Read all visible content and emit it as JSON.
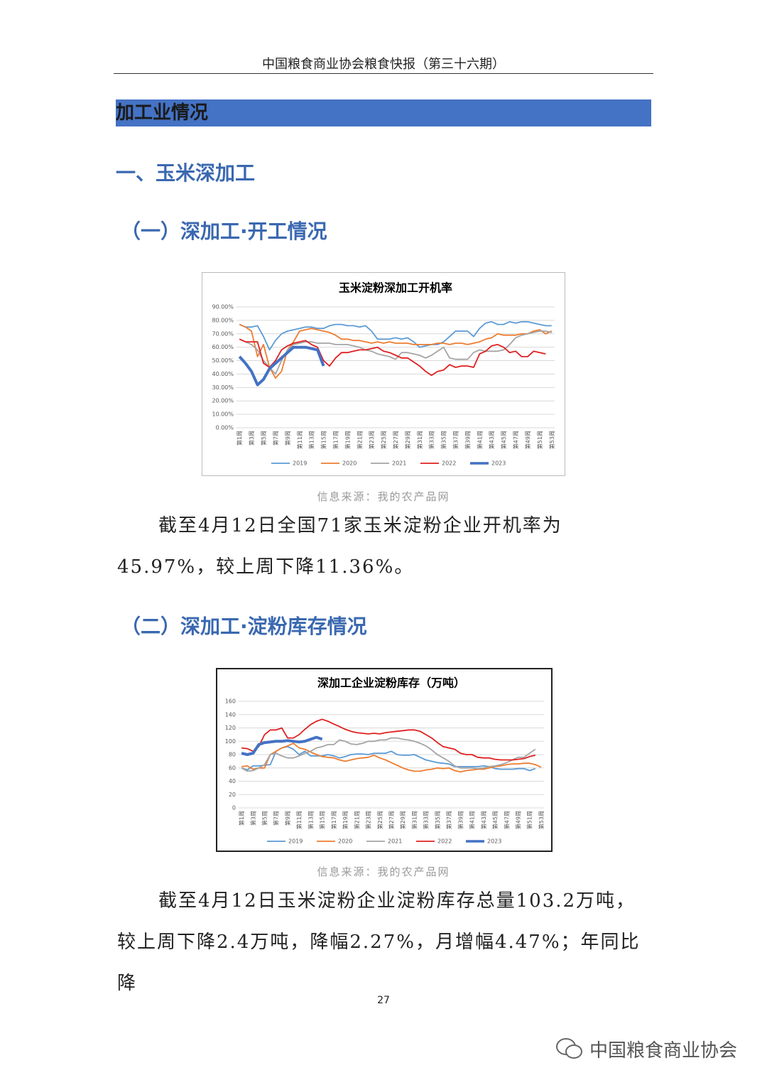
{
  "header": {
    "title": "中国粮食商业协会粮食快报（第三十六期）"
  },
  "banner": "加工业情况",
  "heading1": "一、玉米深加工",
  "sub1": "（一）深加工·开工情况",
  "source1": "信息来源：我的农产品网",
  "para1": "截至4月12日全国71家玉米淀粉企业开机率为45.97%，较上周下降11.36%。",
  "sub2": "（二）深加工·淀粉库存情况",
  "source2": "信息来源：我的农产品网",
  "para2": "截至4月12日玉米淀粉企业淀粉库存总量103.2万吨，较上周下降2.4万吨，降幅2.27%，月增幅4.47%；年同比降",
  "page_number": "27",
  "watermark": "中国粮食商业协会",
  "chart_data": [
    {
      "type": "line",
      "title": "玉米淀粉深加工开机率",
      "grid": true,
      "legend": "bottom",
      "categories": [
        "第1周",
        null,
        "第3周",
        null,
        "第5周",
        null,
        "第7周",
        null,
        "第9周",
        null,
        "第11周",
        null,
        "第13周",
        null,
        "第15周",
        null,
        "第17周",
        null,
        "第19周",
        null,
        "第21周",
        null,
        "第23周",
        null,
        "第25周",
        null,
        "第27周",
        null,
        "第29周",
        null,
        "第31周",
        null,
        "第33周",
        null,
        "第35周",
        null,
        "第37周",
        null,
        "第39周",
        null,
        "第41周",
        null,
        "第43周",
        null,
        "第45周",
        null,
        "第47周",
        null,
        "第49周",
        null,
        "第51周",
        null,
        "第53周"
      ],
      "ylim": [
        0,
        90
      ],
      "yticks": [
        {
          "value": 0,
          "label": "0.00%"
        },
        {
          "value": 10,
          "label": "10.00%"
        },
        {
          "value": 20,
          "label": "20.00%"
        },
        {
          "value": 30,
          "label": "30.00%"
        },
        {
          "value": 40,
          "label": "40.00%"
        },
        {
          "value": 50,
          "label": "50.00%"
        },
        {
          "value": 60,
          "label": "60.00%"
        },
        {
          "value": 70,
          "label": "70.00%"
        },
        {
          "value": 80,
          "label": "80.00%"
        },
        {
          "value": 90,
          "label": "90.00%"
        }
      ],
      "series": [
        {
          "name": "2019",
          "color": "#5b9bd5",
          "values": [
            77,
            75,
            75,
            76,
            68,
            58,
            65,
            70,
            72,
            73,
            74,
            75,
            75,
            74,
            74,
            76,
            77,
            77,
            76,
            76,
            75,
            76,
            72,
            66,
            66,
            66,
            67,
            66,
            67,
            64,
            60,
            61,
            62,
            62,
            64,
            68,
            72,
            72,
            72,
            68,
            74,
            78,
            79,
            77,
            77,
            79,
            78,
            79,
            79,
            78,
            77,
            76,
            76
          ]
        },
        {
          "name": "2020",
          "color": "#ed7d31",
          "values": [
            77,
            75,
            72,
            53,
            62,
            45,
            37,
            42,
            58,
            64,
            72,
            73,
            74,
            73,
            72,
            71,
            69,
            66,
            66,
            65,
            65,
            64,
            63,
            64,
            63,
            64,
            63,
            63,
            63,
            62,
            62,
            62,
            62,
            63,
            63,
            62,
            63,
            63,
            62,
            63,
            64,
            66,
            67,
            70,
            69,
            69,
            69,
            70,
            70,
            72,
            73,
            70,
            72
          ]
        },
        {
          "name": "2021",
          "color": "#a5a5a5",
          "values": [
            66,
            64,
            62,
            58,
            50,
            45,
            40,
            50,
            58,
            62,
            63,
            64,
            64,
            63,
            63,
            63,
            62,
            62,
            62,
            61,
            60,
            58,
            57,
            55,
            54,
            53,
            51,
            56,
            56,
            55,
            54,
            52,
            54,
            57,
            60,
            52,
            51,
            51,
            51,
            56,
            58,
            57,
            57,
            57,
            58,
            62,
            67,
            69,
            70,
            71,
            72,
            72,
            71
          ]
        },
        {
          "name": "2022",
          "color": "#e02020",
          "values": [
            66,
            64,
            64,
            64,
            48,
            45,
            50,
            58,
            61,
            63,
            64,
            65,
            62,
            60,
            50,
            46,
            52,
            56,
            56,
            57,
            58,
            58,
            59,
            60,
            57,
            56,
            54,
            52,
            52,
            49,
            46,
            42,
            39,
            42,
            43,
            47,
            45,
            46,
            46,
            45,
            55,
            57,
            61,
            62,
            60,
            56,
            57,
            53,
            53,
            57,
            56,
            55,
            null
          ]
        },
        {
          "name": "2023",
          "color": "#4472c4",
          "values": [
            53,
            48,
            42,
            32,
            36,
            44,
            48,
            52,
            56,
            60,
            60,
            60,
            59,
            58,
            46,
            null,
            null,
            null,
            null,
            null,
            null,
            null,
            null,
            null,
            null,
            null,
            null,
            null,
            null,
            null,
            null,
            null,
            null,
            null,
            null,
            null,
            null,
            null,
            null,
            null,
            null,
            null,
            null,
            null,
            null,
            null,
            null,
            null,
            null,
            null,
            null,
            null,
            null
          ]
        }
      ]
    },
    {
      "type": "line",
      "title": "深加工企业淀粉库存（万吨）",
      "grid": true,
      "legend": "bottom",
      "categories": [
        "第1周",
        null,
        "第3周",
        null,
        "第5周",
        null,
        "第7周",
        null,
        "第9周",
        null,
        "第11周",
        null,
        "第13周",
        null,
        "第15周",
        null,
        "第17周",
        null,
        "第19周",
        null,
        "第21周",
        null,
        "第23周",
        null,
        "第25周",
        null,
        "第27周",
        null,
        "第29周",
        null,
        "第31周",
        null,
        "第33周",
        null,
        "第35周",
        null,
        "第37周",
        null,
        "第39周",
        null,
        "第41周",
        null,
        "第43周",
        null,
        "第45周",
        null,
        "第47周",
        null,
        "第49周",
        null,
        "第51周",
        null,
        "第53周"
      ],
      "ylim": [
        0,
        160
      ],
      "yticks": [
        0,
        20,
        40,
        60,
        80,
        100,
        120,
        140,
        160
      ],
      "series": [
        {
          "name": "2019",
          "color": "#5b9bd5",
          "values": [
            60,
            57,
            63,
            63,
            64,
            65,
            85,
            90,
            92,
            88,
            80,
            85,
            78,
            78,
            78,
            80,
            78,
            75,
            77,
            80,
            81,
            81,
            80,
            82,
            82,
            82,
            85,
            80,
            79,
            79,
            80,
            76,
            72,
            70,
            68,
            67,
            66,
            62,
            62,
            62,
            62,
            62,
            63,
            62,
            59,
            58,
            58,
            58,
            59,
            59,
            56,
            59,
            null
          ]
        },
        {
          "name": "2020",
          "color": "#ed7d31",
          "values": [
            62,
            63,
            58,
            60,
            60,
            80,
            85,
            90,
            93,
            97,
            90,
            88,
            84,
            80,
            77,
            76,
            75,
            72,
            70,
            72,
            74,
            75,
            76,
            79,
            75,
            72,
            68,
            64,
            60,
            57,
            55,
            55,
            57,
            58,
            60,
            59,
            60,
            56,
            54,
            56,
            57,
            58,
            58,
            60,
            62,
            63,
            65,
            66,
            66,
            67,
            67,
            65,
            61
          ]
        },
        {
          "name": "2021",
          "color": "#a5a5a5",
          "values": [
            60,
            55,
            56,
            60,
            65,
            80,
            82,
            78,
            75,
            75,
            78,
            82,
            85,
            90,
            92,
            95,
            95,
            102,
            100,
            96,
            95,
            97,
            100,
            100,
            102,
            102,
            105,
            105,
            103,
            102,
            100,
            97,
            93,
            87,
            80,
            75,
            70,
            63,
            60,
            60,
            60,
            59,
            60,
            62,
            63,
            65,
            68,
            72,
            76,
            76,
            82,
            88,
            null
          ]
        },
        {
          "name": "2022",
          "color": "#e02020",
          "values": [
            90,
            89,
            85,
            92,
            110,
            117,
            117,
            120,
            105,
            105,
            110,
            118,
            125,
            130,
            133,
            130,
            126,
            122,
            118,
            115,
            113,
            112,
            111,
            112,
            111,
            113,
            114,
            115,
            116,
            117,
            117,
            115,
            110,
            105,
            98,
            92,
            90,
            88,
            82,
            80,
            80,
            76,
            75,
            75,
            73,
            72,
            72,
            72,
            73,
            74,
            77,
            79,
            null
          ]
        },
        {
          "name": "2023",
          "color": "#4472c4",
          "values": [
            82,
            80,
            82,
            95,
            98,
            99,
            100,
            100,
            101,
            100,
            99,
            100,
            103,
            106,
            103.2,
            null,
            null,
            null,
            null,
            null,
            null,
            null,
            null,
            null,
            null,
            null,
            null,
            null,
            null,
            null,
            null,
            null,
            null,
            null,
            null,
            null,
            null,
            null,
            null,
            null,
            null,
            null,
            null,
            null,
            null,
            null,
            null,
            null,
            null,
            null,
            null,
            null,
            null
          ]
        }
      ]
    }
  ]
}
